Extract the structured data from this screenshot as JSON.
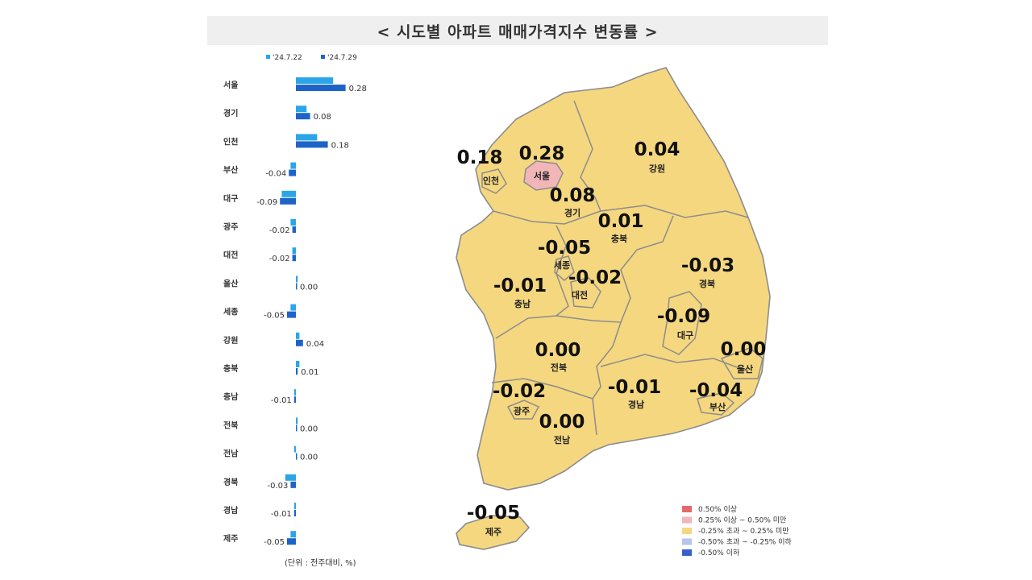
{
  "title": "< 시도별 아파트 매매가격지수 변동률 >",
  "unit_note": "(단위 : 전주대비, %)",
  "colors": {
    "prev": "#2aa6e8",
    "curr": "#1e64c8",
    "map_fill": "#f5d77f",
    "seoul_fill": "#f2b6b8",
    "border": "#8c8c8c"
  },
  "chart_data": [
    {
      "type": "bar",
      "orientation": "horizontal",
      "legend": [
        "'24.7.22",
        "'24.7.29"
      ],
      "legend_position": "top",
      "categories": [
        "서울",
        "경기",
        "인천",
        "부산",
        "대구",
        "광주",
        "대전",
        "울산",
        "세종",
        "강원",
        "충북",
        "충남",
        "전북",
        "전남",
        "경북",
        "경남",
        "제주"
      ],
      "series": [
        {
          "name": "'24.7.22",
          "values": [
            0.21,
            0.06,
            0.12,
            -0.03,
            -0.08,
            -0.03,
            -0.02,
            0.01,
            -0.03,
            0.02,
            0.02,
            -0.01,
            0.01,
            -0.01,
            -0.06,
            -0.01,
            -0.03
          ]
        },
        {
          "name": "'24.7.29",
          "values": [
            0.28,
            0.08,
            0.18,
            -0.04,
            -0.09,
            -0.02,
            -0.02,
            0.0,
            -0.05,
            0.04,
            0.01,
            -0.01,
            0.0,
            0.0,
            -0.03,
            -0.01,
            -0.05
          ]
        }
      ],
      "value_labels": [
        "0.28",
        "0.08",
        "0.18",
        "-0.04",
        "-0.09",
        "-0.02",
        "-0.02",
        "0.00",
        "-0.05",
        "0.04",
        "0.01",
        "-0.01",
        "0.00",
        "0.00",
        "-0.03",
        "-0.01",
        "-0.05"
      ],
      "xlim": [
        -0.12,
        0.32
      ]
    }
  ],
  "map": {
    "regions": [
      {
        "key": "incheon",
        "name": "인천",
        "value": "0.18"
      },
      {
        "key": "seoul",
        "name": "서울",
        "value": "0.28"
      },
      {
        "key": "gangwon",
        "name": "강원",
        "value": "0.04"
      },
      {
        "key": "gyeonggi",
        "name": "경기",
        "value": "0.08"
      },
      {
        "key": "chungbuk",
        "name": "충북",
        "value": "0.01"
      },
      {
        "key": "sejong",
        "name": "세종",
        "value": "-0.05"
      },
      {
        "key": "gyeongbuk",
        "name": "경북",
        "value": "-0.03"
      },
      {
        "key": "daejeon",
        "name": "대전",
        "value": "-0.02"
      },
      {
        "key": "chungnam",
        "name": "충남",
        "value": "-0.01"
      },
      {
        "key": "daegu",
        "name": "대구",
        "value": "-0.09"
      },
      {
        "key": "jeonbuk",
        "name": "전북",
        "value": "0.00"
      },
      {
        "key": "ulsan",
        "name": "울산",
        "value": "0.00"
      },
      {
        "key": "gwangju",
        "name": "광주",
        "value": "-0.02"
      },
      {
        "key": "gyeongnam",
        "name": "경남",
        "value": "-0.01"
      },
      {
        "key": "busan",
        "name": "부산",
        "value": "-0.04"
      },
      {
        "key": "jeonnam",
        "name": "전남",
        "value": "0.00"
      },
      {
        "key": "jeju",
        "name": "제주",
        "value": "-0.05"
      }
    ],
    "legend": [
      {
        "label": "0.50% 이상",
        "color": "#e46a6a"
      },
      {
        "label": "0.25% 이상 ~ 0.50% 미만",
        "color": "#f2b6b8"
      },
      {
        "label": "-0.25% 초과 ~ 0.25% 미만",
        "color": "#f5d77f"
      },
      {
        "label": "-0.50% 초과 ~ -0.25% 이하",
        "color": "#b8c4ea"
      },
      {
        "label": "-0.50% 이하",
        "color": "#3a5fc8"
      }
    ]
  }
}
